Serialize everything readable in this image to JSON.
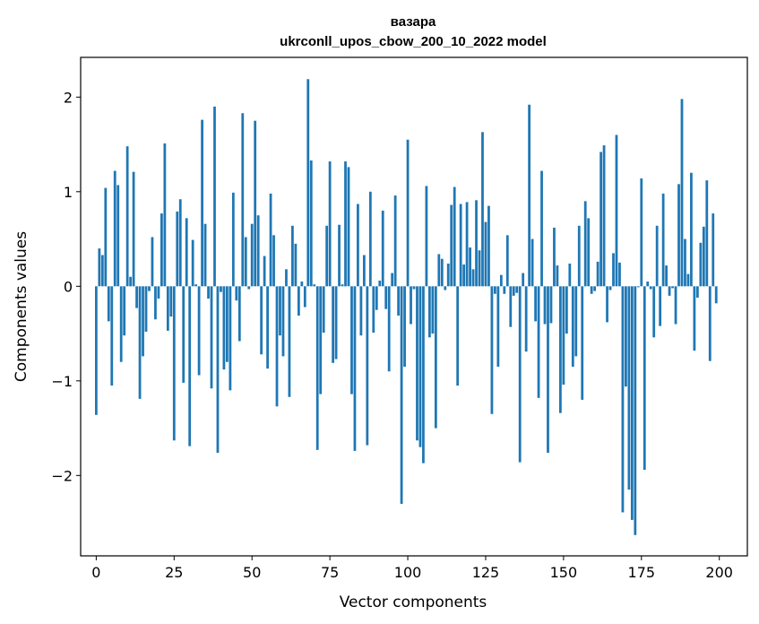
{
  "chart_data": {
    "type": "bar",
    "title": "вазара",
    "subtitle": "ukrconll_upos_cbow_200_10_2022 model",
    "xlabel": "Vector components",
    "ylabel": "Components values",
    "xlim": [
      -5,
      209
    ],
    "ylim": [
      -2.85,
      2.42
    ],
    "xticks": [
      0,
      25,
      50,
      75,
      100,
      125,
      150,
      175,
      200
    ],
    "yticks": [
      -2,
      -1,
      0,
      1,
      2
    ],
    "ytick_labels": [
      "−2",
      "−1",
      "0",
      "1",
      "2"
    ],
    "bar_color": "#1f77b4",
    "grid": false,
    "values": [
      -1.36,
      0.4,
      0.33,
      1.04,
      -0.37,
      -1.05,
      1.22,
      1.07,
      -0.8,
      -0.52,
      1.48,
      0.1,
      1.21,
      -0.23,
      -1.19,
      -0.74,
      -0.48,
      -0.05,
      0.52,
      -0.35,
      -0.13,
      0.77,
      1.51,
      -0.47,
      -0.32,
      -1.63,
      0.79,
      0.92,
      -1.02,
      0.72,
      -1.69,
      0.49,
      0.02,
      -0.94,
      1.76,
      0.66,
      -0.13,
      -1.08,
      1.9,
      -1.76,
      -0.06,
      -0.88,
      -0.8,
      -1.1,
      0.99,
      -0.15,
      -0.58,
      1.83,
      0.52,
      -0.03,
      0.66,
      1.75,
      0.75,
      -0.72,
      0.32,
      -0.87,
      0.98,
      0.54,
      -1.27,
      -0.52,
      -0.74,
      0.18,
      -1.17,
      0.64,
      0.45,
      -0.31,
      0.05,
      -0.22,
      2.19,
      1.33,
      0.02,
      -1.73,
      -1.14,
      -0.49,
      0.64,
      1.32,
      -0.81,
      -0.77,
      0.65,
      0.02,
      1.32,
      1.26,
      -1.14,
      -1.74,
      0.87,
      -0.52,
      0.33,
      -1.68,
      1.0,
      -0.49,
      -0.25,
      0.06,
      0.8,
      -0.24,
      -0.9,
      0.14,
      0.96,
      -0.31,
      -2.3,
      -0.85,
      1.55,
      -0.4,
      -0.03,
      -1.63,
      -1.7,
      -1.87,
      1.06,
      -0.54,
      -0.5,
      -1.5,
      0.34,
      0.29,
      -0.04,
      0.24,
      0.86,
      1.05,
      -1.05,
      0.87,
      0.23,
      0.89,
      0.41,
      0.18,
      0.91,
      0.38,
      1.63,
      0.68,
      0.85,
      -1.35,
      -0.08,
      -0.85,
      0.12,
      -0.08,
      0.54,
      -0.43,
      -0.1,
      -0.07,
      -1.86,
      0.14,
      -0.69,
      1.92,
      0.5,
      -0.37,
      -1.18,
      1.22,
      -0.4,
      -1.76,
      -0.39,
      0.62,
      0.22,
      -1.34,
      -1.04,
      -0.5,
      0.24,
      -0.85,
      -0.74,
      0.64,
      -1.2,
      0.9,
      0.72,
      -0.08,
      -0.05,
      0.26,
      1.42,
      1.49,
      -0.38,
      -0.04,
      0.35,
      1.6,
      0.25,
      -2.39,
      -1.06,
      -2.15,
      -2.47,
      -2.63,
      -0.01,
      1.14,
      -1.94,
      0.05,
      -0.03,
      -0.54,
      0.64,
      -0.42,
      0.98,
      0.22,
      -0.1,
      -0.02,
      -0.4,
      1.08,
      1.98,
      0.5,
      0.13,
      1.2,
      -0.68,
      -0.12,
      0.46,
      0.63,
      1.12,
      -0.79,
      0.77,
      -0.18
    ]
  }
}
